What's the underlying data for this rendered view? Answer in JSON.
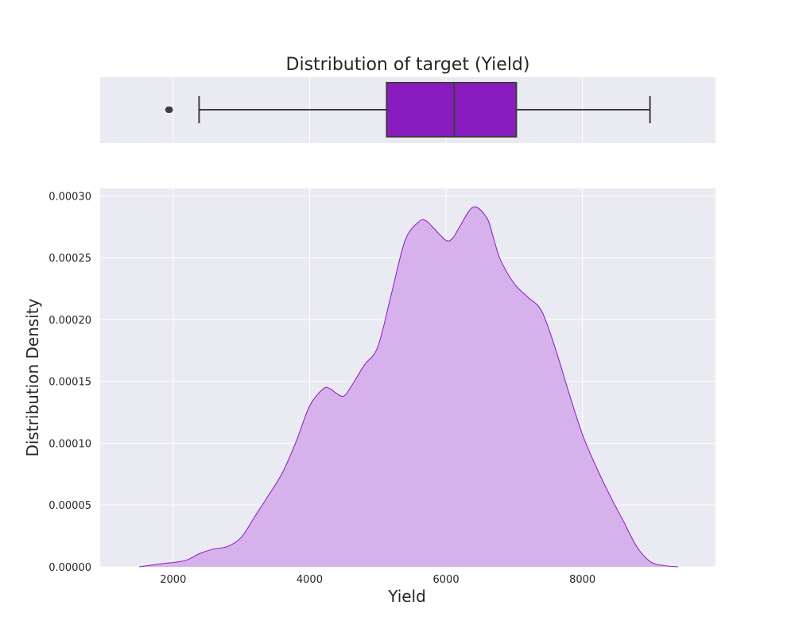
{
  "colors": {
    "axes_bg": "#eaeaf2",
    "grid": "#ffffff",
    "box_fill": "#8a1bbf",
    "box_edge": "#3d3d3d",
    "kde_fill": "#d5aeea",
    "kde_line": "#8a1bbf",
    "text": "#262626"
  },
  "chart_data": [
    {
      "type": "box",
      "title": "Distribution of target (Yield)",
      "xlim": [
        930,
        9950
      ],
      "grid": true,
      "stats": {
        "q1": 5130,
        "median": 6120,
        "q3": 7030,
        "whisker_low": 2380,
        "whisker_high": 8990
      },
      "outliers": [
        1930,
        1940,
        1950
      ]
    },
    {
      "type": "area",
      "xlabel": "Yield",
      "ylabel": "Distribution Density",
      "xlim": [
        930,
        9950
      ],
      "ylim": [
        0,
        0.000306
      ],
      "grid": true,
      "x_ticks": [
        2000,
        4000,
        6000,
        8000
      ],
      "y_ticks": [
        0,
        5e-05,
        0.0001,
        0.00015,
        0.0002,
        0.00025,
        0.0003
      ],
      "x_tick_labels": [
        "2000",
        "4000",
        "6000",
        "8000"
      ],
      "y_tick_labels": [
        "0.00000",
        "0.00005",
        "0.00010",
        "0.00015",
        "0.00020",
        "0.00025",
        "0.00030"
      ],
      "x": [
        1500,
        1700,
        1900,
        2000,
        2200,
        2400,
        2600,
        2800,
        3000,
        3200,
        3400,
        3600,
        3800,
        4000,
        4200,
        4300,
        4400,
        4500,
        4600,
        4800,
        5000,
        5200,
        5400,
        5600,
        5700,
        5800,
        6000,
        6100,
        6200,
        6400,
        6600,
        6700,
        6800,
        7000,
        7200,
        7400,
        7600,
        7800,
        8000,
        8200,
        8400,
        8600,
        8800,
        9000,
        9200,
        9400
      ],
      "y": [
        0,
        1.5e-06,
        3e-06,
        3.5e-06,
        5.5e-06,
        1.1e-05,
        1.45e-05,
        1.65e-05,
        2.4e-05,
        4.1e-05,
        5.8e-05,
        7.6e-05,
        0.000101,
        0.00013,
        0.000144,
        0.000144,
        0.00014,
        0.000138,
        0.000145,
        0.000163,
        0.000178,
        0.000221,
        0.000264,
        0.000279,
        0.00028,
        0.000275,
        0.000264,
        0.000266,
        0.000275,
        0.000291,
        0.000282,
        0.000265,
        0.000248,
        0.000229,
        0.000218,
        0.000207,
        0.000177,
        0.000141,
        0.000107,
        8.1e-05,
        5.8e-05,
        3.7e-05,
        1.6e-05,
        4e-06,
        1e-06,
        0
      ]
    }
  ]
}
